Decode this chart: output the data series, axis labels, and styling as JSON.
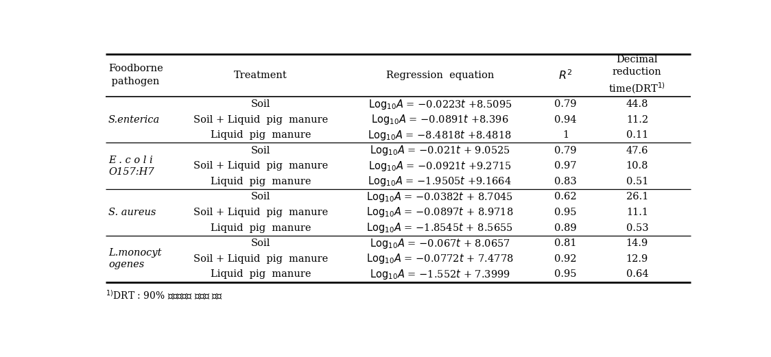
{
  "footnote": "¹)DRT : 90% 사멸하는데 걸리는 시간",
  "groups": [
    {
      "pathogen": "S.enterica",
      "rows": [
        [
          "Soil",
          "= −0.0223",
          "+8.5095",
          "0.79",
          "44.8"
        ],
        [
          "Soil + Liquid  pig  manure",
          "= −0.0891",
          "+8.396",
          "0.94",
          "11.2"
        ],
        [
          "Liquid  pig  manure",
          "= −8.4818",
          "+8.4818",
          "1",
          "0.11"
        ]
      ]
    },
    {
      "pathogen": "E . c o l i\nO157:H7",
      "rows": [
        [
          "Soil",
          "= −0.021",
          "+ 9.0525",
          "0.79",
          "47.6"
        ],
        [
          "Soil + Liquid  pig  manure",
          "= −0.0921",
          "+9.2715",
          "0.97",
          "10.8"
        ],
        [
          "Liquid  pig  manure",
          "= −1.9505",
          "+9.1664",
          "0.83",
          "0.51"
        ]
      ]
    },
    {
      "pathogen": "S. aureus",
      "rows": [
        [
          "Soil",
          "= −0.0382",
          "+ 8.7045",
          "0.62",
          "26.1"
        ],
        [
          "Soil + Liquid  pig  manure",
          "= −0.0897",
          "+ 8.9718",
          "0.95",
          "11.1"
        ],
        [
          "Liquid  pig  manure",
          "= −1.8545",
          "+ 8.5655",
          "0.89",
          "0.53"
        ]
      ]
    },
    {
      "pathogen": "L.monocyt\nogenes",
      "rows": [
        [
          "Soil",
          "= −0.067",
          "+ 8.0657",
          "0.81",
          "14.9"
        ],
        [
          "Soil + Liquid  pig  manure",
          "= −0.0772",
          "+ 7.4778",
          "0.92",
          "12.9"
        ],
        [
          "Liquid  pig  manure",
          "= −1.552",
          "+ 7.3999",
          "0.95",
          "0.64"
        ]
      ]
    }
  ],
  "eq_coeff_t": [
    "t",
    "t",
    "t",
    "t",
    "t",
    "t",
    "t",
    "t",
    "t",
    "t⁺",
    "t⁺",
    "t"
  ],
  "bg_color": "#ffffff",
  "text_color": "#000000",
  "line_color": "#000000",
  "font_size": 10.5,
  "header_font_size": 10.5
}
